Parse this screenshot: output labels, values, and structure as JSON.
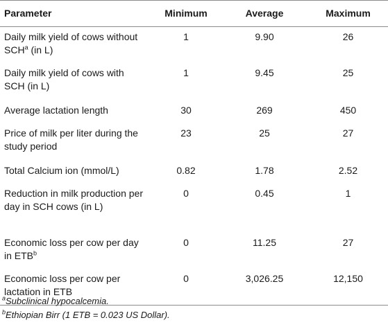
{
  "table": {
    "headers": [
      "Parameter",
      "Minimum",
      "Average",
      "Maximum"
    ],
    "rows": [
      {
        "label_main": "Daily milk yield of cows without SCH",
        "label_sup": "a",
        "label_tail": " (in L)",
        "min": "1",
        "avg": "9.90",
        "max": "26"
      },
      {
        "label_main": "Daily milk yield of cows with SCH (in L)",
        "label_sup": "",
        "label_tail": "",
        "min": "1",
        "avg": "9.45",
        "max": "25"
      },
      {
        "label_main": "Average lactation length",
        "label_sup": "",
        "label_tail": "",
        "min": "30",
        "avg": "269",
        "max": "450"
      },
      {
        "label_main": "Price of milk per liter during the study period",
        "label_sup": "",
        "label_tail": "",
        "min": "23",
        "avg": "25",
        "max": "27"
      },
      {
        "label_main": "Total Calcium ion (mmol/L)",
        "label_sup": "",
        "label_tail": "",
        "min": "0.82",
        "avg": "1.78",
        "max": "2.52"
      },
      {
        "label_main": "Reduction in milk production per day in SCH cows (in L)",
        "label_sup": "",
        "label_tail": "",
        "min": "0",
        "avg": "0.45",
        "max": "1"
      },
      {
        "label_main": "Economic loss per cow per day in ETB",
        "label_sup": "b",
        "label_tail": "",
        "min": "0",
        "avg": "11.25",
        "max": "27"
      },
      {
        "label_main": "Economic loss per cow per lactation in ETB",
        "label_sup": "",
        "label_tail": "",
        "min": "0",
        "avg": "3,026.25",
        "max": "12,150"
      }
    ]
  },
  "footnotes": [
    {
      "mark": "a",
      "text": "Subclinical hypocalcemia."
    },
    {
      "mark": "b",
      "text": "Ethiopian Birr (1 ETB = 0.023 US Dollar)."
    }
  ]
}
